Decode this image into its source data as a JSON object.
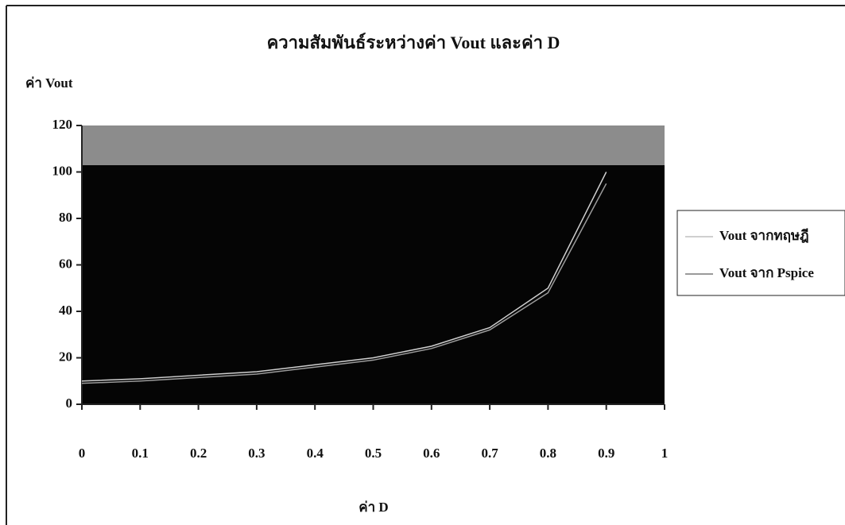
{
  "chart_data": {
    "type": "line",
    "title": "ความสัมพันธ์ระหว่างค่า Vout และค่า D",
    "y_label": "ค่า Vout",
    "x_label": "ค่า D",
    "x": [
      0,
      0.1,
      0.2,
      0.3,
      0.4,
      0.5,
      0.6,
      0.7,
      0.8,
      0.9
    ],
    "series": [
      {
        "name": "Vout จากทฤษฎี",
        "color": "#cfcfcf",
        "values": [
          10,
          11,
          12.5,
          14,
          17,
          20,
          25,
          33,
          50,
          100
        ]
      },
      {
        "name": "Vout จาก Pspice",
        "color": "#9a9a9a",
        "values": [
          9,
          10,
          11.5,
          13,
          16,
          19,
          24,
          32,
          48,
          95
        ]
      }
    ],
    "xlim": [
      0,
      1
    ],
    "xticks": [
      0,
      0.1,
      0.2,
      0.3,
      0.4,
      0.5,
      0.6,
      0.7,
      0.8,
      0.9,
      1
    ],
    "ylim": [
      0,
      120
    ],
    "yticks": [
      0,
      20,
      40,
      60,
      80,
      100,
      120
    ],
    "legend": "right"
  }
}
